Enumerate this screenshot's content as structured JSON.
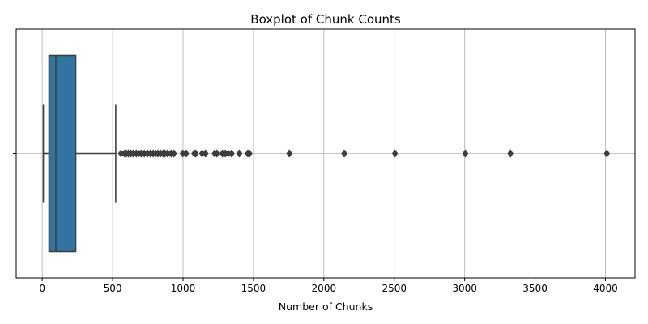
{
  "chart_data": {
    "type": "boxplot",
    "title": "Boxplot of Chunk Counts",
    "xlabel": "Number of Chunks",
    "ylabel": "",
    "xlim": [
      -185,
      4210
    ],
    "xticks": [
      0,
      500,
      1000,
      1500,
      2000,
      2500,
      3000,
      3500,
      4000
    ],
    "xtick_labels": [
      "0",
      "500",
      "1000",
      "1500",
      "2000",
      "2500",
      "3000",
      "3500",
      "4000"
    ],
    "grid": true,
    "orientation": "horizontal",
    "box": {
      "whisker_low": 8,
      "q1": 48,
      "median": 97,
      "q3": 238,
      "whisker_high": 522,
      "color": "#3274a1",
      "edge_color": "#3f3f3f"
    },
    "outliers": [
      560,
      585,
      598,
      612,
      628,
      645,
      668,
      685,
      702,
      725,
      748,
      768,
      788,
      805,
      822,
      840,
      858,
      872,
      890,
      915,
      935,
      998,
      1022,
      1080,
      1090,
      1135,
      1160,
      1225,
      1240,
      1280,
      1300,
      1320,
      1345,
      1400,
      1460,
      1472,
      1755,
      2145,
      2505,
      3005,
      3325,
      4010
    ]
  }
}
